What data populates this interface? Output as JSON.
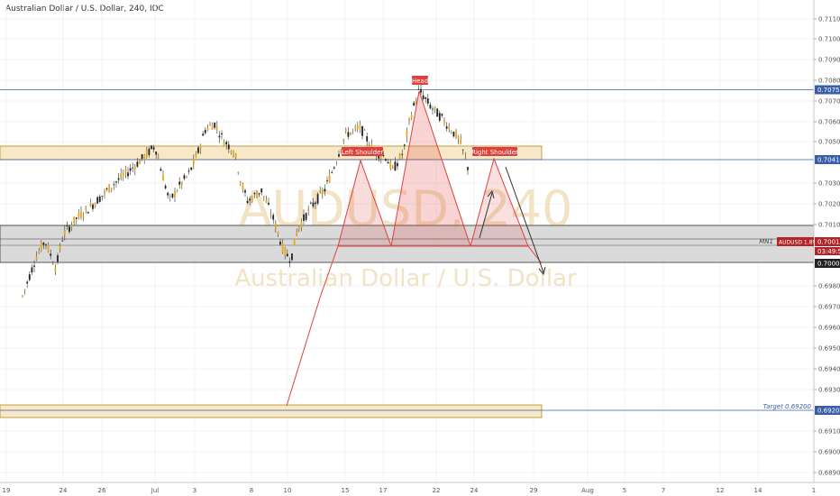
{
  "chart_data": {
    "type": "candlestick",
    "title": "Australian Dollar / U.S. Dollar, 240, IDC",
    "watermark": {
      "symbol": "AUDUSD, 240",
      "description": "Australian Dollar / U.S. Dollar"
    },
    "y_ticks": [
      "0.71100",
      "0.71000",
      "0.70900",
      "0.70800",
      "0.70700",
      "0.70600",
      "0.70500",
      "0.70300",
      "0.70200",
      "0.70100",
      "0.69800",
      "0.69700",
      "0.69600",
      "0.69500",
      "0.69400",
      "0.69300",
      "0.69100",
      "0.69000",
      "0.68900"
    ],
    "x_ticks": [
      "19",
      "24",
      "26",
      "Jul",
      "3",
      "8",
      "10",
      "15",
      "17",
      "22",
      "24",
      "29",
      "Aug",
      "5",
      "7",
      "12",
      "14",
      "1"
    ],
    "price_lines": [
      {
        "value": 0.70753,
        "label": "0.70753"
      },
      {
        "value": 0.70412,
        "label": "0.70412"
      },
      {
        "value": 0.7,
        "label": "0.70000"
      }
    ],
    "target": {
      "value": 0.692,
      "label": "Target 0.69200",
      "price_label": "0.69200"
    },
    "current": {
      "symbol_label": "AUDUSD 1.89%",
      "price": "0.70015",
      "countdown": "03:49:52",
      "side_label": "MN1"
    },
    "pattern_labels": [
      "Left Shoulder",
      "Head",
      "Right Shoulder"
    ],
    "colors": {
      "up": "#e6a817",
      "down": "#222222",
      "zone": "#f7e9c6",
      "zone_border": "#b38b2b",
      "grey_zone": "#d4d4d4",
      "pattern": "#e0403c",
      "price_line": "#3b5ea8"
    }
  }
}
